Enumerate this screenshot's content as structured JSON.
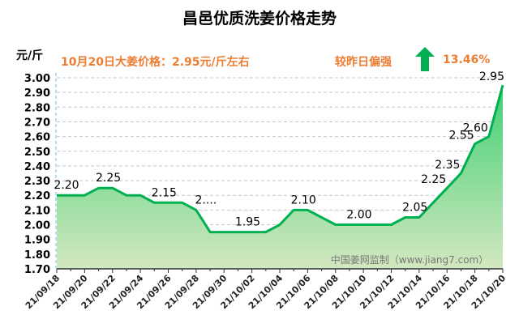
{
  "header": {
    "title": "昌邑优质洗姜价格走势",
    "unit": "元/斤",
    "note": "10月20日大姜价格：2.95元/斤左右",
    "compare_label": "较昨日偏强",
    "change_pct": "13.46%",
    "change_icon": "up-arrow-icon",
    "arrow_color": "#00b050",
    "text_accent": "#ed7d31"
  },
  "chart_data": {
    "type": "area",
    "title": "昌邑优质洗姜价格走势",
    "ylabel": "元/斤",
    "xlabel": "",
    "ylim": [
      1.7,
      3.0
    ],
    "yticks": [
      "1.70",
      "1.80",
      "1.90",
      "2.00",
      "2.10",
      "2.20",
      "2.30",
      "2.40",
      "2.50",
      "2.60",
      "2.70",
      "2.80",
      "2.90",
      "3.00"
    ],
    "grid": true,
    "line_color": "#00b050",
    "fill_top": "#3fcf74",
    "fill_bottom": "#d3e8c0",
    "x": [
      "21/09/18",
      "21/09/19",
      "21/09/20",
      "21/09/21",
      "21/09/22",
      "21/09/23",
      "21/09/24",
      "21/09/25",
      "21/09/26",
      "21/09/27",
      "21/09/28",
      "21/09/29",
      "21/09/30",
      "21/10/01",
      "21/10/02",
      "21/10/03",
      "21/10/04",
      "21/10/05",
      "21/10/06",
      "21/10/07",
      "21/10/08",
      "21/10/09",
      "21/10/10",
      "21/10/11",
      "21/10/12",
      "21/10/13",
      "21/10/14",
      "21/10/15",
      "21/10/16",
      "21/10/17",
      "21/10/18",
      "21/10/19",
      "21/10/20"
    ],
    "values": [
      2.2,
      2.2,
      2.2,
      2.25,
      2.25,
      2.2,
      2.2,
      2.15,
      2.15,
      2.15,
      2.1,
      1.95,
      1.95,
      1.95,
      1.95,
      1.95,
      2.0,
      2.1,
      2.1,
      2.05,
      2.0,
      2.0,
      2.0,
      2.0,
      2.0,
      2.05,
      2.05,
      2.15,
      2.25,
      2.35,
      2.55,
      2.6,
      2.95
    ],
    "xtick_labels": [
      "21/09/18",
      "21/09/20",
      "21/09/22",
      "21/09/24",
      "21/09/26",
      "21/09/28",
      "21/09/30",
      "21/10/02",
      "21/10/04",
      "21/10/06",
      "21/10/08",
      "21/10/10",
      "21/10/12",
      "21/10/14",
      "21/10/16",
      "21/10/18",
      "21/10/20"
    ],
    "data_labels": [
      {
        "date": "21/09/18",
        "text": "2.20"
      },
      {
        "date": "21/09/21",
        "text": "2.25"
      },
      {
        "date": "21/09/25",
        "text": "2.15"
      },
      {
        "date": "21/09/28",
        "text": "2...."
      },
      {
        "date": "21/10/01",
        "text": "1.95"
      },
      {
        "date": "21/10/05",
        "text": "2.10"
      },
      {
        "date": "21/10/09",
        "text": "2.00"
      },
      {
        "date": "21/10/13",
        "text": "2.05"
      },
      {
        "date": "21/10/16",
        "text": "2.25"
      },
      {
        "date": "21/10/17",
        "text": "2.35"
      },
      {
        "date": "21/10/18",
        "text": "2.55"
      },
      {
        "date": "21/10/19",
        "text": "2.60"
      },
      {
        "date": "21/10/20",
        "text": "2.95"
      }
    ],
    "watermark": "中国姜网监制（www.jiang7.com）"
  }
}
